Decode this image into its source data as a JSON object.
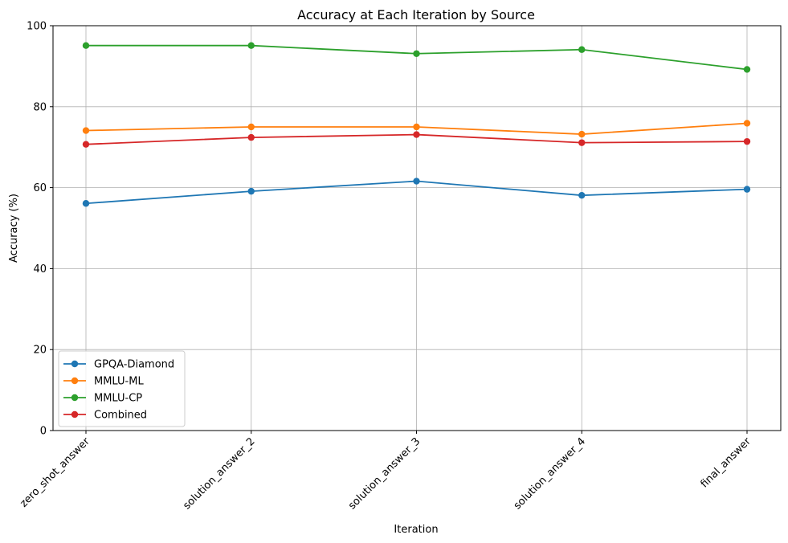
{
  "chart_data": {
    "type": "line",
    "title": "Accuracy at Each Iteration by Source",
    "xlabel": "Iteration",
    "ylabel": "Accuracy (%)",
    "categories": [
      "zero_shot_answer",
      "solution_answer_2",
      "solution_answer_3",
      "solution_answer_4",
      "final_answer"
    ],
    "ylim": [
      0,
      100
    ],
    "yticks": [
      0,
      20,
      40,
      60,
      80,
      100
    ],
    "grid": true,
    "legend_position": "lower-left",
    "series": [
      {
        "name": "GPQA-Diamond",
        "color": "#1f77b4",
        "values": [
          56.1,
          59.1,
          61.6,
          58.1,
          59.6
        ]
      },
      {
        "name": "MMLU-ML",
        "color": "#ff7f0e",
        "values": [
          74.1,
          75.0,
          75.0,
          73.2,
          75.9
        ]
      },
      {
        "name": "MMLU-CP",
        "color": "#2ca02c",
        "values": [
          95.1,
          95.1,
          93.1,
          94.1,
          89.2
        ]
      },
      {
        "name": "Combined",
        "color": "#d62728",
        "values": [
          70.7,
          72.4,
          73.1,
          71.1,
          71.4
        ]
      }
    ]
  }
}
